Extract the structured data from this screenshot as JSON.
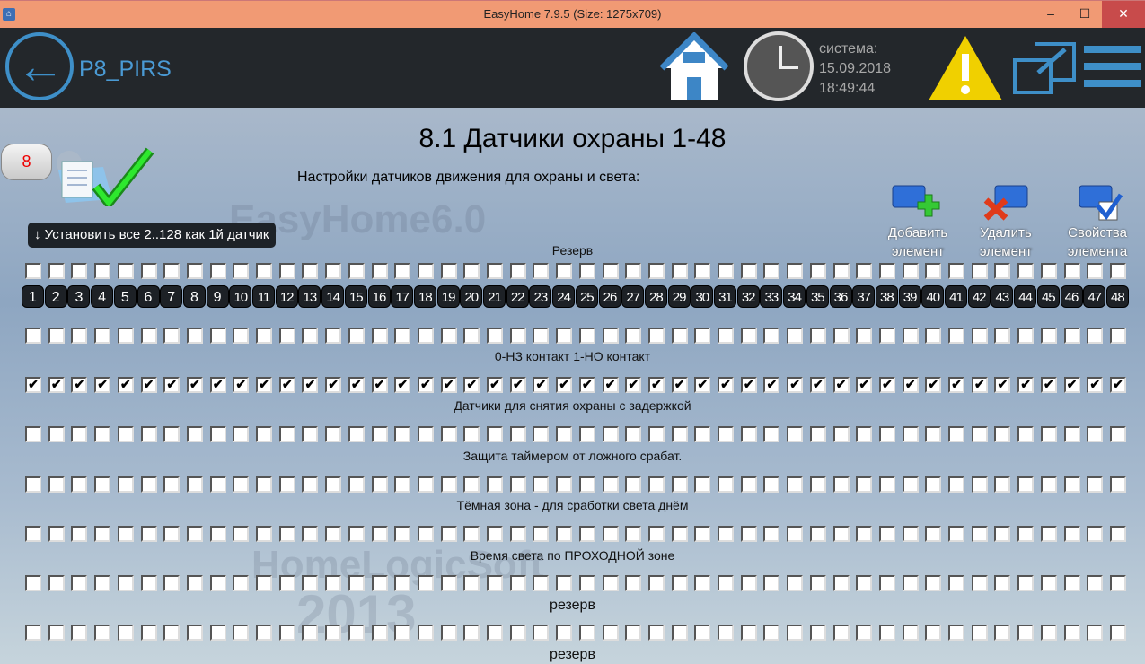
{
  "window": {
    "title": "EasyHome 7.9.5 (Size: 1275x709)",
    "minimize": "‒",
    "maximize": "☐",
    "close": "✕"
  },
  "header": {
    "page": "P8_PIRS",
    "system_label": "система:",
    "date": "15.09.2018",
    "time": "18:49:44"
  },
  "page": {
    "title": "8.1 Датчики охраны 1-48",
    "subtitle": "Настройки датчиков движения для охраны и света:",
    "page_number": "8",
    "set_all_button": "↓ Установить все 2..128 как 1й датчик",
    "watermark_top": "EasyHome6.0",
    "watermark_bottom": "HomeLogicSoft",
    "watermark_year": "2013"
  },
  "toolbar": {
    "add": "Добавить элемент",
    "delete": "Удалить элемент",
    "properties": "Свойства элемента"
  },
  "sensor_numbers": [
    1,
    2,
    3,
    4,
    5,
    6,
    7,
    8,
    9,
    10,
    11,
    12,
    13,
    14,
    15,
    16,
    17,
    18,
    19,
    20,
    21,
    22,
    23,
    24,
    25,
    26,
    27,
    28,
    29,
    30,
    31,
    32,
    33,
    34,
    35,
    36,
    37,
    38,
    39,
    40,
    41,
    42,
    43,
    44,
    45,
    46,
    47,
    48
  ],
  "rows": [
    {
      "label": "Резерв",
      "checked": []
    },
    {
      "label": "",
      "checked": []
    },
    {
      "label": "0-НЗ контакт  1-НО контакт",
      "checked": [
        1,
        2,
        3,
        4,
        5,
        6,
        7,
        8,
        9,
        10,
        11,
        12,
        13,
        14,
        15,
        16,
        17,
        18,
        19,
        20,
        21,
        22,
        23,
        24,
        25,
        26,
        27,
        28,
        29,
        30,
        31,
        32,
        33,
        34,
        35,
        36,
        37,
        38,
        39,
        40,
        41,
        42,
        43,
        44,
        45,
        46,
        47,
        48
      ]
    },
    {
      "label": "Датчики для снятия охраны с задержкой",
      "checked": []
    },
    {
      "label": "Защита таймером от ложного срабат.",
      "checked": []
    },
    {
      "label": "Тёмная зона -  для сработки света днём",
      "checked": []
    },
    {
      "label": "Время света по ПРОХОДНОЙ зоне",
      "checked": []
    },
    {
      "label": "резерв",
      "checked": []
    }
  ],
  "footer_label": "резерв"
}
